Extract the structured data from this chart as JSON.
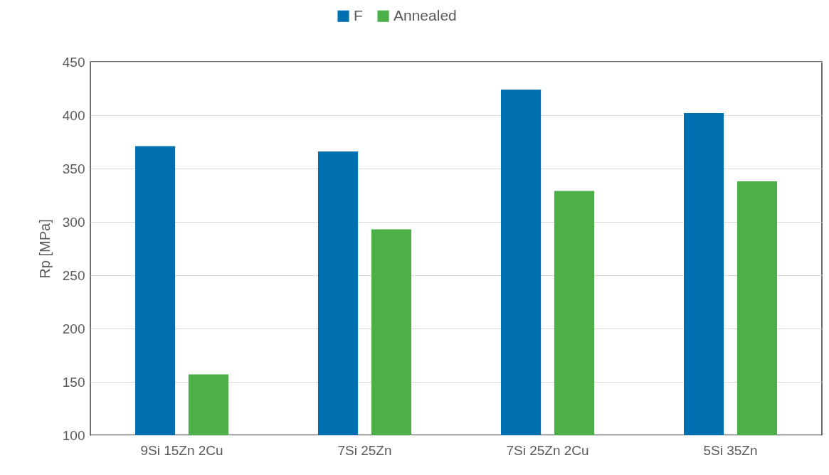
{
  "chart_data": {
    "type": "bar",
    "ylabel": "Rp [MPa]",
    "categories": [
      "9Si 15Zn 2Cu",
      "7Si 25Zn",
      "7Si 25Zn 2Cu",
      "5Si 35Zn"
    ],
    "series": [
      {
        "name": "F",
        "color": "#0070b0",
        "values": [
          371,
          366,
          424,
          402
        ]
      },
      {
        "name": "Annealed",
        "color": "#4caf48",
        "values": [
          157,
          293,
          329,
          338
        ]
      }
    ],
    "ylim": [
      100,
      450
    ],
    "yticks": [
      100,
      150,
      200,
      250,
      300,
      350,
      400,
      450
    ],
    "grid": "y",
    "legend": "top"
  }
}
